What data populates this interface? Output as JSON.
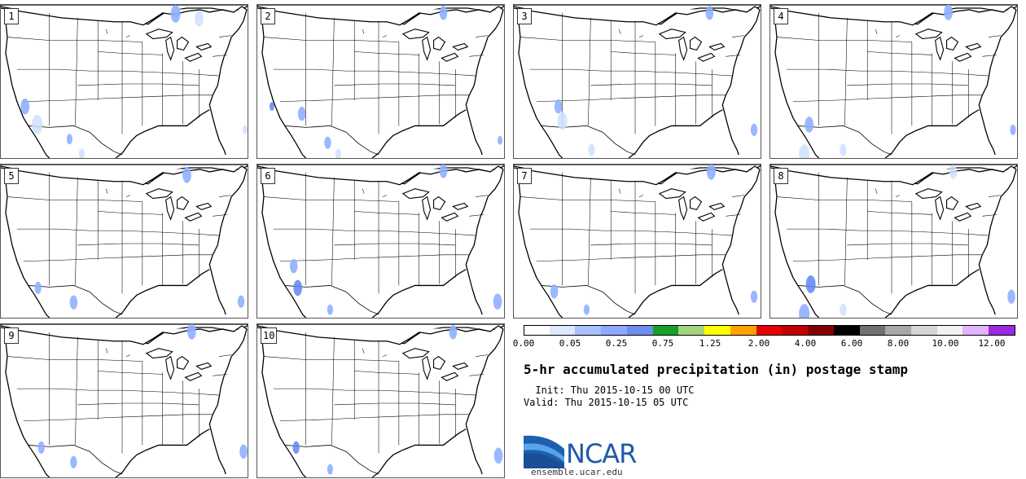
{
  "panels": [
    {
      "label": "1",
      "precip": [
        [
          30,
          28,
          "p2",
          9
        ],
        [
          45,
          33,
          "p1",
          11
        ],
        [
          85,
          37,
          "p2",
          6
        ],
        [
          100,
          42,
          "p1",
          6
        ],
        [
          216,
          11,
          "p2",
          10
        ],
        [
          245,
          17,
          "p1",
          9
        ],
        [
          302,
          95,
          "p1",
          5
        ]
      ]
    },
    {
      "label": "2",
      "precip": [
        [
          18,
          28,
          "p3",
          5
        ],
        [
          55,
          30,
          "p2",
          8
        ],
        [
          87,
          38,
          "p2",
          7
        ],
        [
          100,
          44,
          "p1",
          6
        ],
        [
          230,
          10,
          "p2",
          8
        ],
        [
          300,
          108,
          "p2",
          5
        ]
      ]
    },
    {
      "label": "3",
      "precip": [
        [
          55,
          28,
          "p2",
          8
        ],
        [
          60,
          32,
          "p1",
          10
        ],
        [
          96,
          40,
          "p1",
          7
        ],
        [
          242,
          10,
          "p2",
          8
        ],
        [
          297,
          95,
          "p2",
          7
        ]
      ]
    },
    {
      "label": "4",
      "precip": [
        [
          48,
          33,
          "p2",
          9
        ],
        [
          42,
          42,
          "p1",
          11
        ],
        [
          90,
          40,
          "p1",
          7
        ],
        [
          220,
          9,
          "p2",
          9
        ],
        [
          300,
          95,
          "p2",
          6
        ]
      ]
    },
    {
      "label": "5",
      "precip": [
        [
          46,
          34,
          "p2",
          7
        ],
        [
          90,
          38,
          "p2",
          8
        ],
        [
          230,
          13,
          "p2",
          9
        ],
        [
          297,
          110,
          "p2",
          7
        ]
      ]
    },
    {
      "label": "6",
      "precip": [
        [
          50,
          34,
          "p3",
          9
        ],
        [
          45,
          28,
          "p2",
          8
        ],
        [
          90,
          40,
          "p2",
          6
        ],
        [
          230,
          8,
          "p2",
          8
        ],
        [
          297,
          110,
          "p2",
          9
        ]
      ]
    },
    {
      "label": "7",
      "precip": [
        [
          50,
          35,
          "p2",
          8
        ],
        [
          90,
          40,
          "p2",
          6
        ],
        [
          244,
          9,
          "p2",
          9
        ],
        [
          297,
          104,
          "p2",
          7
        ]
      ]
    },
    {
      "label": "8",
      "precip": [
        [
          50,
          33,
          "p3",
          10
        ],
        [
          42,
          42,
          "p2",
          11
        ],
        [
          90,
          40,
          "p1",
          7
        ],
        [
          226,
          9,
          "p1",
          8
        ],
        [
          298,
          104,
          "p2",
          8
        ]
      ]
    },
    {
      "label": "9",
      "precip": [
        [
          50,
          34,
          "p2",
          7
        ],
        [
          90,
          38,
          "p2",
          7
        ],
        [
          236,
          9,
          "p2",
          9
        ],
        [
          300,
          98,
          "p2",
          8
        ]
      ]
    },
    {
      "label": "10",
      "precip": [
        [
          48,
          34,
          "p3",
          7
        ],
        [
          90,
          40,
          "p2",
          6
        ],
        [
          242,
          10,
          "p2",
          8
        ],
        [
          298,
          103,
          "p2",
          9
        ]
      ]
    }
  ],
  "colorbar": {
    "colors": [
      "#ffffff",
      "#dfe8ff",
      "#a9c1ff",
      "#8da8ff",
      "#6f8cf0",
      "#16a02a",
      "#a4d47e",
      "#ffff00",
      "#ffa200",
      "#e60000",
      "#c30000",
      "#830000",
      "#000000",
      "#707070",
      "#a8a8a8",
      "#d6d6d6",
      "#f2f2f2",
      "#e5b2ff",
      "#9a29e0"
    ],
    "tick_labels": [
      "0.00",
      "0.05",
      "0.25",
      "0.75",
      "1.25",
      "2.00",
      "4.00",
      "6.00",
      "8.00",
      "10.00",
      "12.00"
    ]
  },
  "title": "5-hr accumulated precipitation (in) postage stamp",
  "init_line": "  Init: Thu 2015-10-15 00 UTC",
  "valid_line": "Valid: Thu 2015-10-15 05 UTC",
  "logo_text": "NCAR",
  "logo_url": "ensemble.ucar.edu"
}
